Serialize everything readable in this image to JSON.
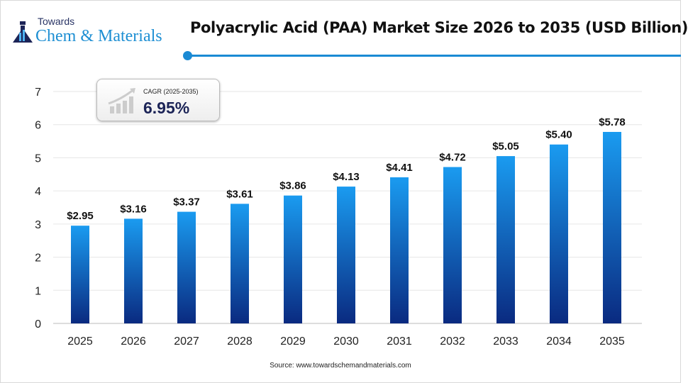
{
  "logo": {
    "line1": "Towards",
    "line2": "Chem & Materials"
  },
  "source": "Source: www.towardschemandmaterials.com",
  "cagr": {
    "label": "CAGR (2025-2035)",
    "value": "6.95%"
  },
  "colors": {
    "bar_top": "#1a9bf0",
    "bar_bottom": "#0a2a80",
    "accent": "#1a8ad4"
  },
  "chart_data": {
    "type": "bar",
    "title": "Polyacrylic Acid (PAA) Market Size 2026 to 2035 (USD Billion)",
    "categories": [
      "2025",
      "2026",
      "2027",
      "2028",
      "2029",
      "2030",
      "2031",
      "2032",
      "2033",
      "2034",
      "2035"
    ],
    "values": [
      2.95,
      3.16,
      3.37,
      3.61,
      3.86,
      4.13,
      4.41,
      4.72,
      5.05,
      5.4,
      5.78
    ],
    "data_labels": [
      "$2.95",
      "$3.16",
      "$3.37",
      "$3.61",
      "$3.86",
      "$4.13",
      "$4.41",
      "$4.72",
      "$5.05",
      "$5.40",
      "$5.78"
    ],
    "yticks": [
      0,
      1,
      2,
      3,
      4,
      5,
      6,
      7
    ],
    "ylim": [
      0,
      7
    ],
    "grid": true,
    "xlabel": "",
    "ylabel": ""
  }
}
